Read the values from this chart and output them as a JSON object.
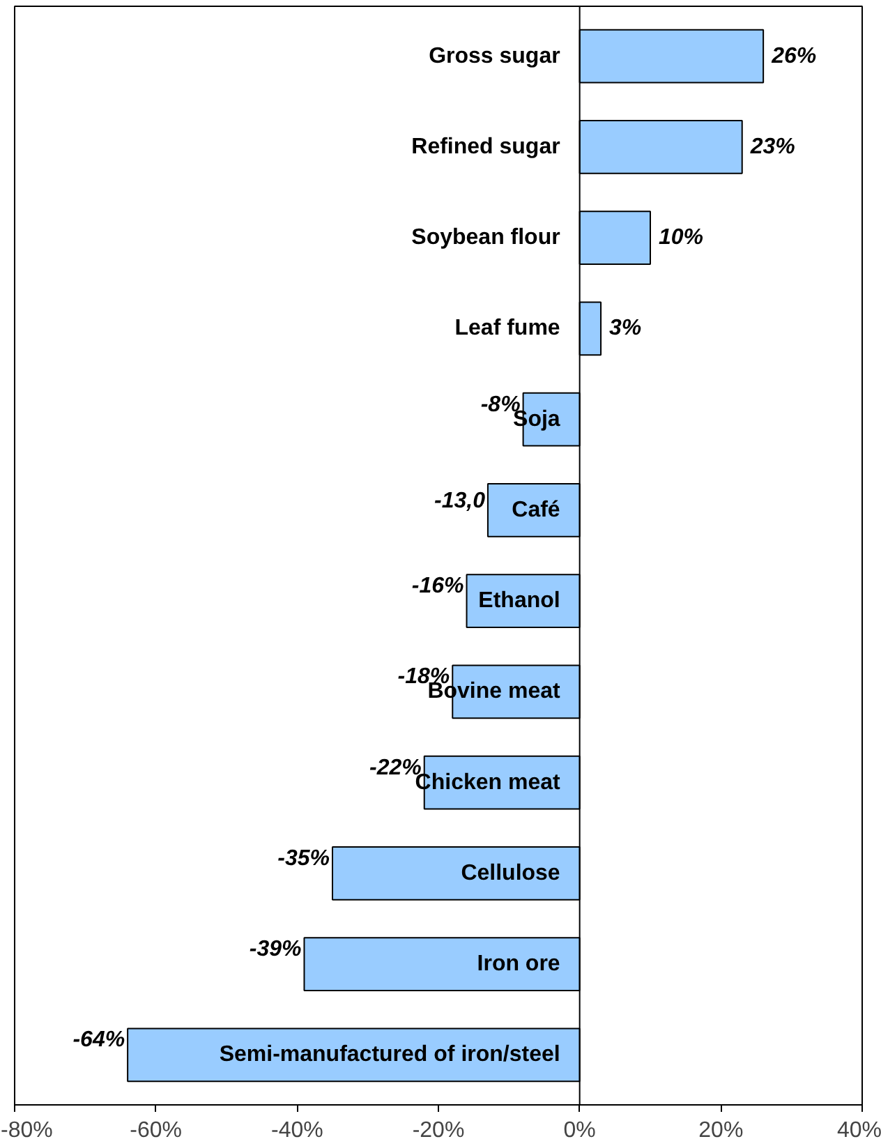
{
  "chart_data": {
    "type": "bar",
    "orientation": "horizontal",
    "categories": [
      "Gross sugar",
      "Refined sugar",
      "Soybean flour",
      "Leaf fume",
      "Soja",
      "Café",
      "Ethanol",
      "Bovine meat",
      "Chicken meat",
      "Cellulose",
      "Iron ore",
      "Semi-manufactured of iron/steel"
    ],
    "values": [
      26,
      23,
      10,
      3,
      -8,
      -13.0,
      -16,
      -18,
      -22,
      -35,
      -39,
      -64
    ],
    "value_labels": [
      "26%",
      "23%",
      "10%",
      "3%",
      "-8%",
      "-13,0",
      "-16%",
      "-18%",
      "-22%",
      "-35%",
      "-39%",
      "-64%"
    ],
    "color": "#99ccff",
    "xlim": [
      -80,
      40
    ],
    "xticks": [
      {
        "value": -80,
        "label": "-80%"
      },
      {
        "value": -60,
        "label": "-60%"
      },
      {
        "value": -40,
        "label": "-40%"
      },
      {
        "value": -20,
        "label": "-20%"
      },
      {
        "value": 0,
        "label": "0%"
      },
      {
        "value": 20,
        "label": "20%"
      },
      {
        "value": 40,
        "label": "40%"
      }
    ],
    "grid": false
  }
}
